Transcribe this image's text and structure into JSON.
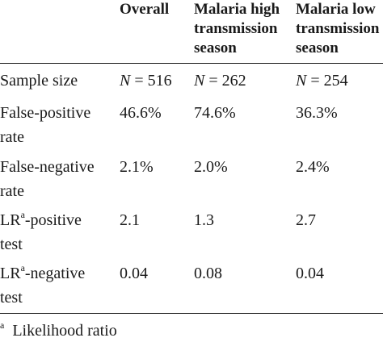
{
  "table": {
    "columns": {
      "overall": "Overall",
      "high_line1": "Malaria high",
      "high_line2": "transmission",
      "high_line3": "season",
      "low_line1": "Malaria low",
      "low_line2": "transmission",
      "low_line3": "season"
    },
    "rows": [
      {
        "label_line1": "Sample size",
        "label_line2": "",
        "n_symbol": "N",
        "n_equals": " = ",
        "overall": "516",
        "high": "262",
        "low": "254"
      },
      {
        "label_line1": "False-positive",
        "label_line2": "rate",
        "overall": "46.6%",
        "high": "74.6%",
        "low": "36.3%"
      },
      {
        "label_line1": "False-negative",
        "label_line2": "rate",
        "overall": "2.1%",
        "high": "2.0%",
        "low": "2.4%"
      },
      {
        "label_prefix": "LR",
        "label_sup": "a",
        "label_suffix": "-positive",
        "label_line2": "test",
        "overall": "2.1",
        "high": "1.3",
        "low": "2.7"
      },
      {
        "label_prefix": "LR",
        "label_sup": "a",
        "label_suffix": "-negative",
        "label_line2": "test",
        "overall": "0.04",
        "high": "0.08",
        "low": "0.04"
      }
    ],
    "footnote": {
      "marker": "a",
      "text": "Likelihood ratio"
    }
  }
}
